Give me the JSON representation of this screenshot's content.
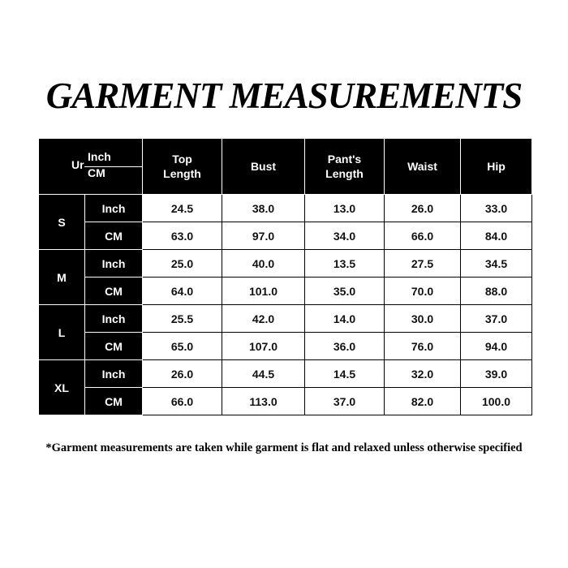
{
  "title": "GARMENT MEASUREMENTS",
  "table": {
    "corner": {
      "unit_label": "Ur",
      "inch": "Inch",
      "cm": "CM"
    },
    "headers": [
      "Top Length",
      "Bust",
      "Pant's Length",
      "Waist",
      "Hip"
    ],
    "sizes": [
      {
        "size": "S",
        "rows": [
          {
            "unit": "Inch",
            "values": [
              "24.5",
              "38.0",
              "13.0",
              "26.0",
              "33.0"
            ]
          },
          {
            "unit": "CM",
            "values": [
              "63.0",
              "97.0",
              "34.0",
              "66.0",
              "84.0"
            ]
          }
        ]
      },
      {
        "size": "M",
        "rows": [
          {
            "unit": "Inch",
            "values": [
              "25.0",
              "40.0",
              "13.5",
              "27.5",
              "34.5"
            ]
          },
          {
            "unit": "CM",
            "values": [
              "64.0",
              "101.0",
              "35.0",
              "70.0",
              "88.0"
            ]
          }
        ]
      },
      {
        "size": "L",
        "rows": [
          {
            "unit": "Inch",
            "values": [
              "25.5",
              "42.0",
              "14.0",
              "30.0",
              "37.0"
            ]
          },
          {
            "unit": "CM",
            "values": [
              "65.0",
              "107.0",
              "36.0",
              "76.0",
              "94.0"
            ]
          }
        ]
      },
      {
        "size": "XL",
        "rows": [
          {
            "unit": "Inch",
            "values": [
              "26.0",
              "44.5",
              "14.5",
              "32.0",
              "39.0"
            ]
          },
          {
            "unit": "CM",
            "values": [
              "66.0",
              "113.0",
              "37.0",
              "82.0",
              "100.0"
            ]
          }
        ]
      }
    ]
  },
  "footnote": "*Garment measurements are taken while garment is flat and relaxed unless otherwise specified"
}
